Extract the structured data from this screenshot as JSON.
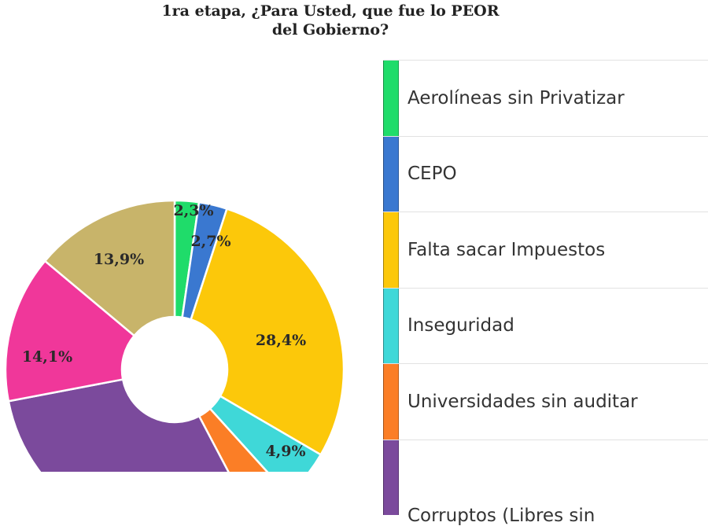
{
  "title": {
    "line1": "1ra etapa, ¿Para Usted, que fue lo PEOR",
    "line2": "del Gobierno?"
  },
  "chart_data": {
    "type": "pie",
    "variant": "donut",
    "title": "1ra etapa, ¿Para Usted, que fue lo PEOR del Gobierno?",
    "categories": [
      "Aerolíneas sin Privatizar",
      "CEPO",
      "Falta sacar Impuestos",
      "Inseguridad",
      "Universidades sin auditar",
      "Corruptos (Libres sin",
      "",
      ""
    ],
    "values": [
      2.3,
      2.7,
      28.4,
      4.9,
      4.0,
      29.7,
      14.1,
      13.9
    ],
    "labels": [
      "2,3%",
      "2,7%",
      "28,4%",
      "4,9%",
      "",
      "",
      "14,1%",
      "13,9%"
    ],
    "colors": [
      "#1fdc6a",
      "#3a78d0",
      "#fcc80a",
      "#3fd8d8",
      "#fb7e26",
      "#7b4a9c",
      "#f0379a",
      "#c8b46a"
    ],
    "legend_position": "right",
    "start_angle": "top, clockwise"
  },
  "legend": {
    "items": [
      {
        "label": "Aerolíneas sin Privatizar",
        "color": "#1fdc6a"
      },
      {
        "label": "CEPO",
        "color": "#3a78d0"
      },
      {
        "label": "Falta sacar Impuestos",
        "color": "#fcc80a"
      },
      {
        "label": "Inseguridad",
        "color": "#3fd8d8"
      },
      {
        "label": "Universidades sin auditar",
        "color": "#fb7e26"
      },
      {
        "label": "Corruptos (Libres sin",
        "color": "#7b4a9c"
      }
    ]
  }
}
